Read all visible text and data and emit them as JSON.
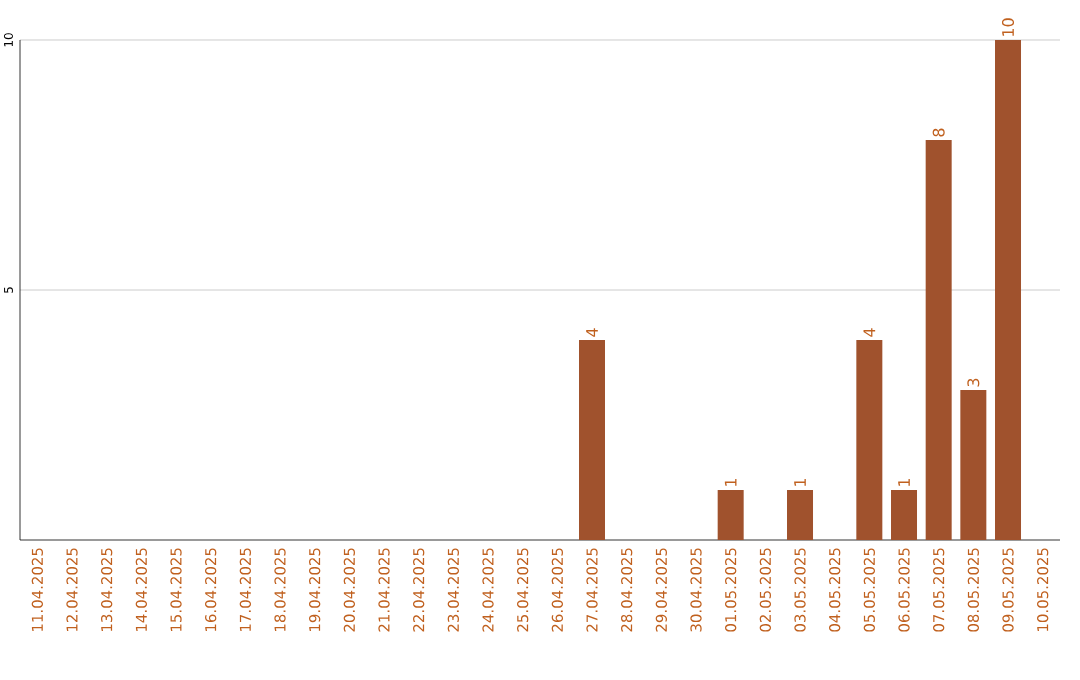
{
  "chart_data": {
    "type": "bar",
    "categories": [
      "11.04.2025",
      "12.04.2025",
      "13.04.2025",
      "14.04.2025",
      "15.04.2025",
      "16.04.2025",
      "17.04.2025",
      "18.04.2025",
      "19.04.2025",
      "20.04.2025",
      "21.04.2025",
      "22.04.2025",
      "23.04.2025",
      "24.04.2025",
      "25.04.2025",
      "26.04.2025",
      "27.04.2025",
      "28.04.2025",
      "29.04.2025",
      "30.04.2025",
      "01.05.2025",
      "02.05.2025",
      "03.05.2025",
      "04.05.2025",
      "05.05.2025",
      "06.05.2025",
      "07.05.2025",
      "08.05.2025",
      "09.05.2025",
      "10.05.2025"
    ],
    "values": [
      0,
      0,
      0,
      0,
      0,
      0,
      0,
      0,
      0,
      0,
      0,
      0,
      0,
      0,
      0,
      0,
      4,
      0,
      0,
      0,
      1,
      0,
      1,
      0,
      4,
      1,
      8,
      3,
      10,
      0
    ],
    "value_labels": [
      null,
      null,
      null,
      null,
      null,
      null,
      null,
      null,
      null,
      null,
      null,
      null,
      null,
      null,
      null,
      null,
      "4",
      null,
      null,
      null,
      "1",
      null,
      "1",
      null,
      "4",
      "1",
      "8",
      "3",
      "10",
      null
    ],
    "color": "#a0522d",
    "ylim": [
      0,
      10
    ],
    "yticks": [
      5,
      10
    ],
    "grid": "y"
  }
}
